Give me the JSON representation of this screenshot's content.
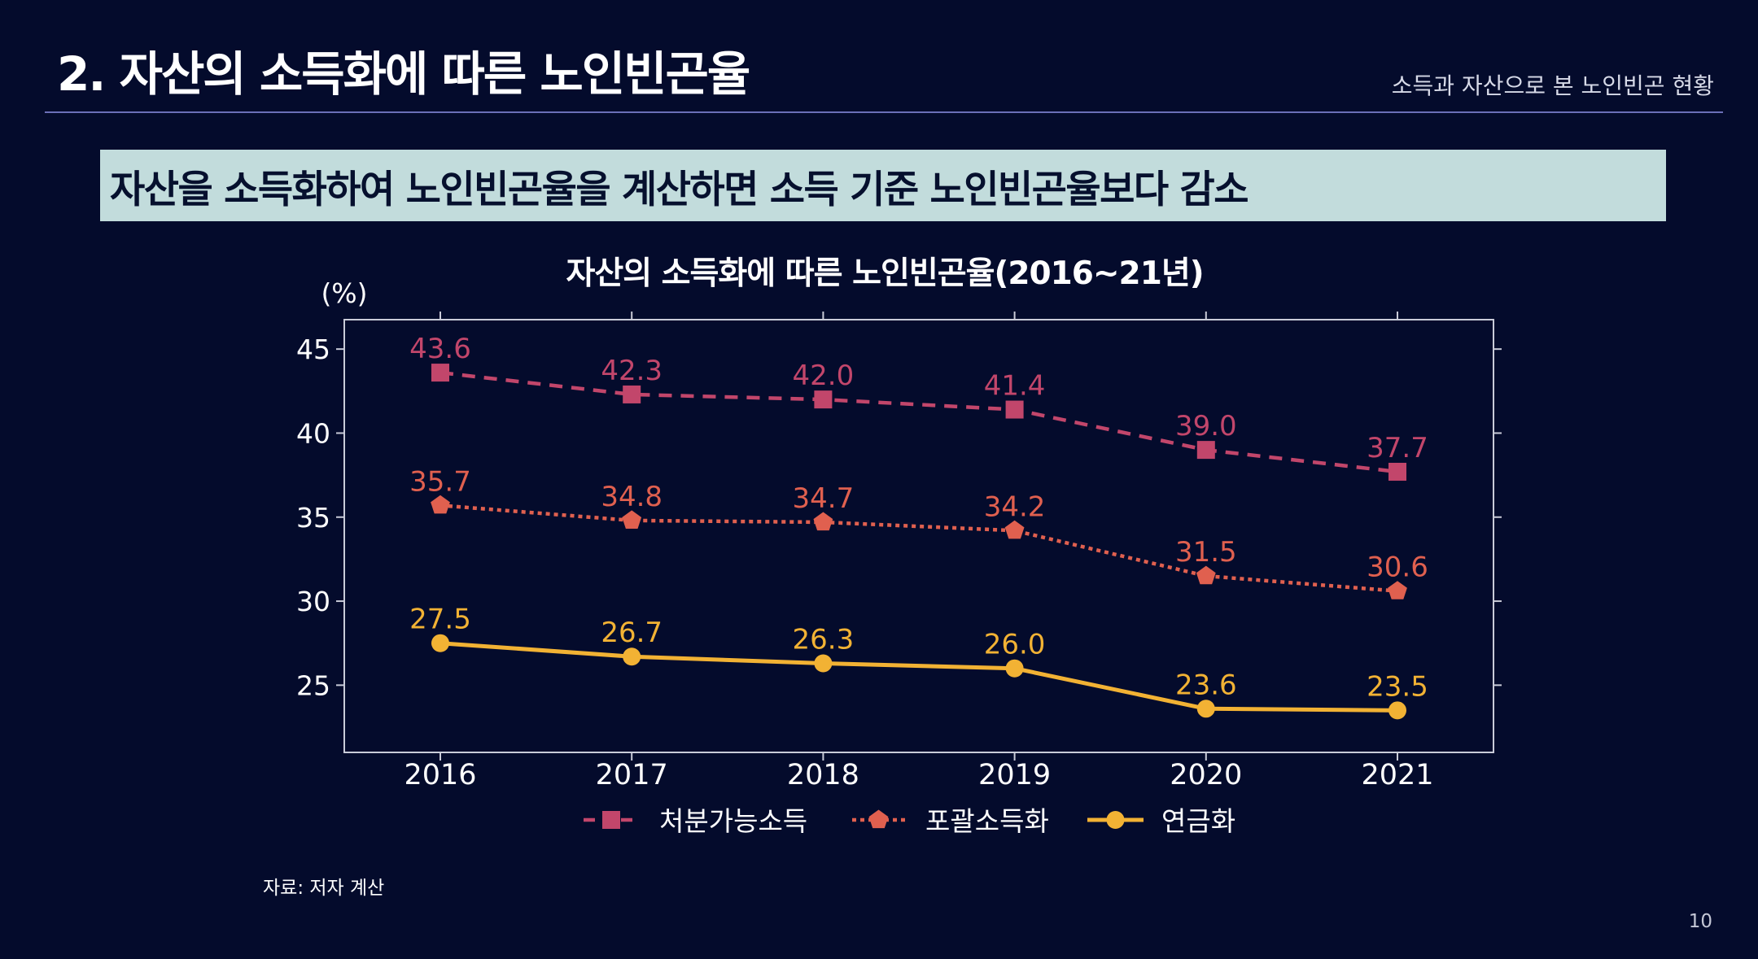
{
  "header": {
    "title": "2. 자산의 소득화에 따른 노인빈곤율",
    "section": "소득과 자산으로 본 노인빈곤 현황"
  },
  "banner": {
    "text": "자산을 소득화하여 노인빈곤율을 계산하면 소득 기준 노인빈곤율보다 감소"
  },
  "chart_data": {
    "type": "line",
    "title": "자산의 소득화에 따른 노인빈곤율(2016~21년)",
    "ylabel": "(%)",
    "xlabel": "",
    "categories": [
      "2016",
      "2017",
      "2018",
      "2019",
      "2020",
      "2021"
    ],
    "ylim": [
      21,
      46
    ],
    "yticks": [
      25,
      30,
      35,
      40,
      45
    ],
    "grid": false,
    "legend": "bottom",
    "series": [
      {
        "name": "처분가능소득",
        "values": [
          43.6,
          42.3,
          42.0,
          41.4,
          39.0,
          37.7
        ],
        "labels": [
          "43.6",
          "42.3",
          "42.0",
          "41.4",
          "39.0",
          "37.7"
        ],
        "color": "#c2466b",
        "line_style": "dashed",
        "marker": "square"
      },
      {
        "name": "포괄소득화",
        "values": [
          35.7,
          34.8,
          34.7,
          34.2,
          31.5,
          30.6
        ],
        "labels": [
          "35.7",
          "34.8",
          "34.7",
          "34.2",
          "31.5",
          "30.6"
        ],
        "color": "#e0604f",
        "line_style": "dotted",
        "marker": "pentagon"
      },
      {
        "name": "연금화",
        "values": [
          27.5,
          26.7,
          26.3,
          26.0,
          23.6,
          23.5
        ],
        "labels": [
          "27.5",
          "26.7",
          "26.3",
          "26.0",
          "23.6",
          "23.5"
        ],
        "color": "#f2b234",
        "line_style": "solid",
        "marker": "circle"
      }
    ]
  },
  "footer": {
    "source": "자료: 저자 계산",
    "page_number": "10"
  }
}
